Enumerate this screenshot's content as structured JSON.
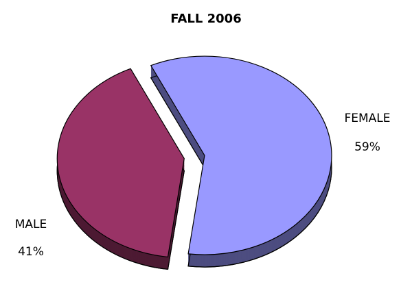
{
  "chart_data": {
    "type": "pie",
    "title": "FALL 2006",
    "categories": [
      "FEMALE",
      "MALE"
    ],
    "values": [
      59,
      41
    ],
    "value_labels": [
      "59%",
      "41%"
    ],
    "colors": [
      "#9999ff",
      "#993366"
    ]
  }
}
